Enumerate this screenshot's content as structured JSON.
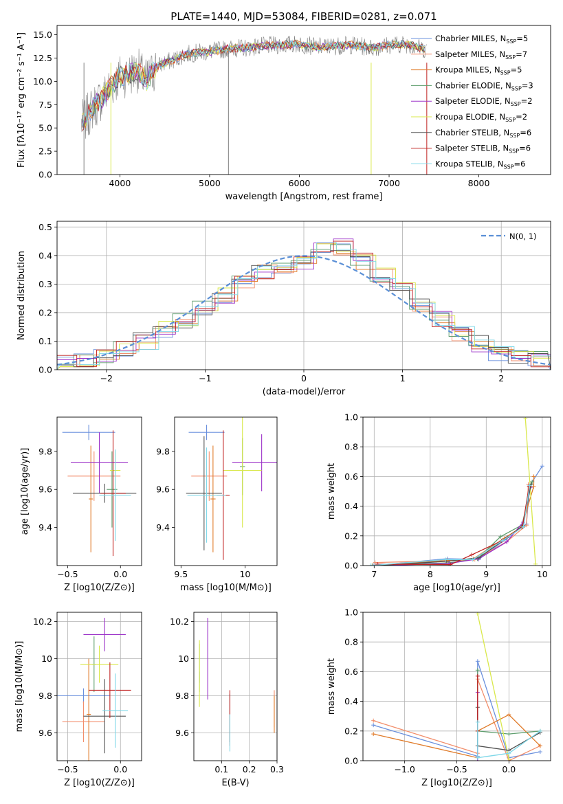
{
  "colors": {
    "grey": "#808080",
    "grid": "#b0b0b0",
    "normal_curve": "#5a8fd6"
  },
  "chart_data": [
    {
      "type": "line",
      "title": "PLATE=1440, MJD=53084, FIBERID=0281, z=0.071",
      "xlabel": "wavelength [Angstrom, rest frame]",
      "ylabel": "Flux [fλ10⁻¹⁷ erg cm⁻² s⁻¹ A⁻¹]",
      "xlim": [
        3300,
        8800
      ],
      "ylim": [
        0,
        16
      ],
      "xticks": [
        4000,
        5000,
        6000,
        7000,
        8000
      ],
      "yticks": [
        0.0,
        2.5,
        5.0,
        7.5,
        10.0,
        12.5,
        15.0
      ],
      "grid": false,
      "legend_position": "right",
      "observed_x": [
        3570,
        3620,
        3700,
        3800,
        3900,
        4000,
        4100,
        4200,
        4300,
        4400,
        4500,
        4600,
        4700,
        4800,
        4900,
        5000,
        5200,
        5400,
        5600,
        5800,
        6000,
        6200,
        6400,
        6600,
        6800,
        7000,
        7200,
        7400
      ],
      "observed_y": [
        5.5,
        6.0,
        7.2,
        8.2,
        9.5,
        10.5,
        10.8,
        11.2,
        10.0,
        11.5,
        12.0,
        12.3,
        12.8,
        13.0,
        13.1,
        13.2,
        13.5,
        13.6,
        13.8,
        13.9,
        14.0,
        13.7,
        13.8,
        13.9,
        13.6,
        13.9,
        14.0,
        13.4
      ],
      "series": [
        {
          "name": "Chabrier MILES, N_SSP=5",
          "color": "#6a90dd"
        },
        {
          "name": "Salpeter MILES, N_SSP=7",
          "color": "#f28e6b"
        },
        {
          "name": "Kroupa MILES, N_SSP=5",
          "color": "#e07b2a"
        },
        {
          "name": "Chabrier ELODIE, N_SSP=3",
          "color": "#5f9e6e"
        },
        {
          "name": "Salpeter ELODIE, N_SSP=2",
          "color": "#9b30c8"
        },
        {
          "name": "Kroupa ELODIE, N_SSP=2",
          "color": "#d9e84a"
        },
        {
          "name": "Chabrier STELIB, N_SSP=6",
          "color": "#505050"
        },
        {
          "name": "Salpeter STELIB, N_SSP=6",
          "color": "#c0201f"
        },
        {
          "name": "Kroupa STELIB, N_SSP=6",
          "color": "#7fd8e8"
        }
      ]
    },
    {
      "type": "line",
      "xlabel": "(data-model)/error",
      "ylabel": "Normed distribution",
      "xlim": [
        -2.5,
        2.5
      ],
      "ylim": [
        0,
        0.52
      ],
      "xticks": [
        -2,
        -1,
        0,
        1,
        2
      ],
      "yticks": [
        0.0,
        0.1,
        0.2,
        0.3,
        0.4,
        0.5
      ],
      "grid": true,
      "legend_position": "top-right",
      "legend": "N(0, 1)",
      "bin_edges": [
        -2.5,
        -2.3,
        -2.1,
        -1.9,
        -1.7,
        -1.5,
        -1.3,
        -1.1,
        -0.9,
        -0.7,
        -0.5,
        -0.3,
        -0.1,
        0.1,
        0.3,
        0.5,
        0.7,
        0.9,
        1.1,
        1.3,
        1.5,
        1.7,
        1.9,
        2.1,
        2.3,
        2.5
      ],
      "mean_hist": [
        0.025,
        0.035,
        0.05,
        0.075,
        0.1,
        0.14,
        0.17,
        0.22,
        0.26,
        0.3,
        0.34,
        0.36,
        0.38,
        0.42,
        0.43,
        0.38,
        0.33,
        0.29,
        0.23,
        0.18,
        0.13,
        0.09,
        0.06,
        0.045,
        0.035
      ]
    },
    {
      "type": "scatter",
      "xlabel": "Z [log10(Z/Z⊙)]",
      "ylabel": "age  [log10(age/yr)]",
      "xlim": [
        -0.6,
        0.2
      ],
      "ylim": [
        9.2,
        9.98
      ],
      "xticks": [
        -0.5,
        0.0
      ],
      "yticks": [
        9.4,
        9.6,
        9.8
      ],
      "grid": false
    },
    {
      "type": "scatter",
      "xlabel": "mass [log10(M/M⊙)]",
      "ylim": [
        9.2,
        9.98
      ],
      "xlim": [
        9.45,
        10.25
      ],
      "xticks": [
        9.5,
        10.0
      ],
      "yticks": [
        9.4,
        9.6,
        9.8
      ],
      "grid": false
    },
    {
      "type": "line",
      "xlabel": "age  [log10(age/yr)]",
      "ylabel": "mass weight",
      "xlim": [
        6.8,
        10.15
      ],
      "ylim": [
        0,
        1.0
      ],
      "xticks": [
        7,
        8,
        9,
        10
      ],
      "yticks": [
        0.0,
        0.2,
        0.4,
        0.6,
        0.8,
        1.0
      ],
      "grid": true
    },
    {
      "type": "scatter",
      "xlabel": "Z [log10(Z/Z⊙)]",
      "ylabel": "mass [log10(M/M⊙)]",
      "xlim": [
        -0.6,
        0.2
      ],
      "ylim": [
        9.45,
        10.25
      ],
      "xticks": [
        -0.5,
        0.0
      ],
      "yticks": [
        9.6,
        9.8,
        10.0,
        10.2
      ],
      "grid": true
    },
    {
      "type": "scatter",
      "xlabel": "E(B-V)",
      "xlim": [
        0.0,
        0.3
      ],
      "ylim": [
        9.45,
        10.25
      ],
      "xticks": [
        0.1,
        0.2,
        0.3
      ],
      "yticks": [
        9.6,
        9.8,
        10.0,
        10.2
      ],
      "grid": true
    },
    {
      "type": "line",
      "xlabel": "Z [log10(Z/Z⊙)]",
      "ylabel": "mass weight",
      "xlim": [
        -1.4,
        0.4
      ],
      "ylim": [
        0,
        1.0
      ],
      "xticks": [
        -1.0,
        -0.5,
        0.0
      ],
      "yticks": [
        0.0,
        0.2,
        0.4,
        0.6,
        0.8,
        1.0
      ],
      "grid": true
    }
  ]
}
